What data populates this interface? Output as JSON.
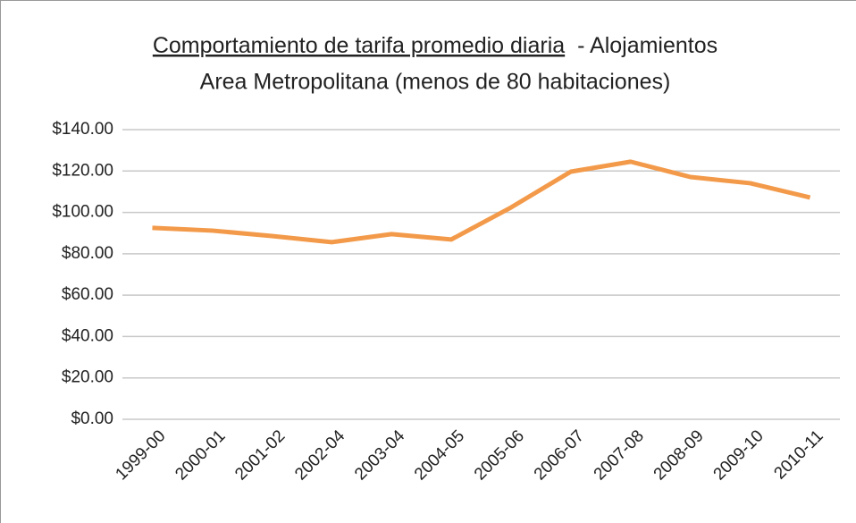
{
  "chart_data": {
    "type": "line",
    "title": [
      "Comportamiento de tarifa promedio diaria",
      "- Alojamientos"
    ],
    "subtitle": "Area Metropolitana (menos de 80 habitaciones)",
    "categories": [
      "1999-00",
      "2000-01",
      "2001-02",
      "2002-04",
      "2003-04",
      "2004-05",
      "2005-06",
      "2006-07",
      "2007-08",
      "2008-09",
      "2009-10",
      "2010-11"
    ],
    "series": [
      {
        "color": "#f39a4a",
        "values": [
          92.5,
          91.2,
          88.6,
          85.6,
          89.5,
          86.9,
          102.4,
          119.7,
          124.5,
          117.1,
          114.1,
          107.2
        ]
      }
    ],
    "ylim": [
      0,
      140
    ],
    "yticks": [
      {
        "value": 0,
        "label": "$0.00"
      },
      {
        "value": 20,
        "label": "$20.00"
      },
      {
        "value": 40,
        "label": "$40.00"
      },
      {
        "value": 60,
        "label": "$60.00"
      },
      {
        "value": 80,
        "label": "$80.00"
      },
      {
        "value": 100,
        "label": "$100.00"
      },
      {
        "value": 120,
        "label": "$120.00"
      },
      {
        "value": 140,
        "label": "$140.00"
      }
    ],
    "grid": true
  }
}
